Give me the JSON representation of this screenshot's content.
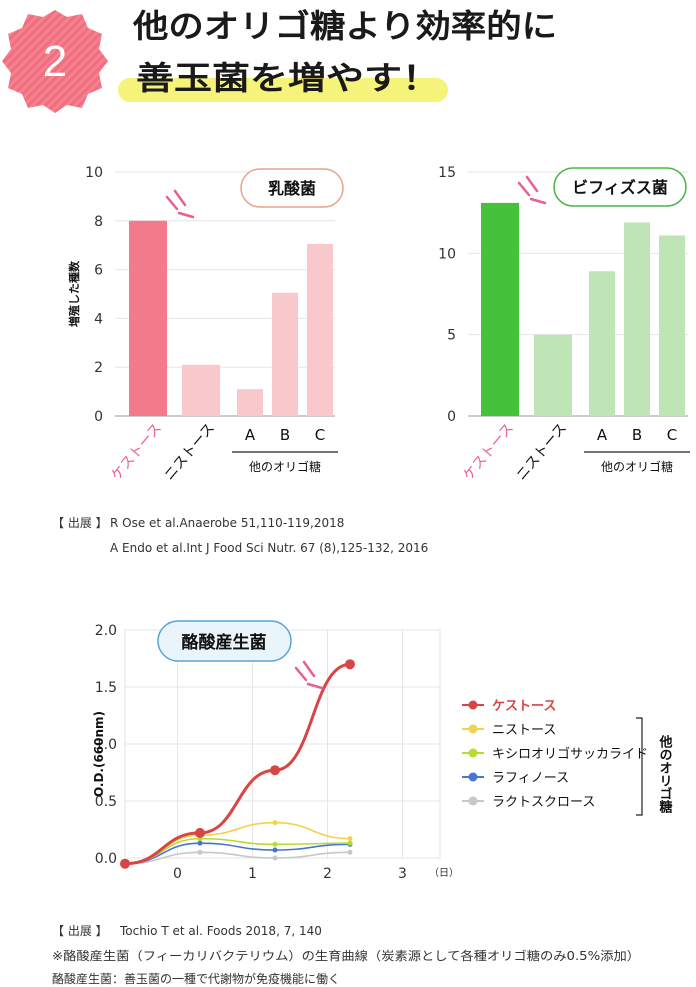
{
  "header": {
    "number": "2",
    "line1": "他のオリゴ糖より効率的に",
    "line2": "善玉菌を増やす！"
  },
  "colors": {
    "badge": "#f26d7d",
    "highlight": "#f6f37a",
    "lacto_main": "#f27a8a",
    "lacto_other": "#f9c8cd",
    "bifido_main": "#46c13a",
    "bifido_other": "#bfe5b6",
    "kestose": "#d94545",
    "nistose": "#f2d24a",
    "xylo": "#b6dc2e",
    "raffinose": "#4a72d8",
    "lactosucrose": "#c8c8c8"
  },
  "chart_data": [
    {
      "type": "bar",
      "badge": "乳酸菌",
      "ylabel": "増殖した種数",
      "ylim": [
        0,
        10
      ],
      "yticks": [
        "0",
        "2",
        "4",
        "6",
        "8",
        "10"
      ],
      "categories": [
        "ケストース",
        "ニストース",
        "A",
        "B",
        "C"
      ],
      "values": [
        8,
        2.1,
        1.1,
        5.05,
        7.05
      ],
      "group_label": "他のオリゴ糖"
    },
    {
      "type": "bar",
      "badge": "ビフィズス菌",
      "ylim": [
        0,
        15
      ],
      "yticks": [
        "0",
        "5",
        "10",
        "15"
      ],
      "categories": [
        "ケストース",
        "ニストース",
        "A",
        "B",
        "C"
      ],
      "values": [
        13.1,
        5,
        8.9,
        11.9,
        11.1
      ],
      "group_label": "他のオリゴ糖"
    },
    {
      "type": "line",
      "badge": "酪酸産生菌",
      "ylabel": "O.D.(660nm)",
      "xunit": "（日）",
      "xlim": [
        -0.7,
        3.5
      ],
      "ylim": [
        0,
        2.0
      ],
      "xticks": [
        "0",
        "1",
        "2",
        "3"
      ],
      "yticks": [
        "0.0",
        "0.5",
        "1.0",
        "1.5",
        "2.0"
      ],
      "group_label": "他のオリゴ糖",
      "series": [
        {
          "name": "ケストース",
          "x": [
            -0.7,
            0.3,
            1.3,
            2.3
          ],
          "y": [
            -0.05,
            0.22,
            0.77,
            1.7
          ]
        },
        {
          "name": "ニストース",
          "x": [
            -0.7,
            0.3,
            1.3,
            2.3
          ],
          "y": [
            -0.05,
            0.2,
            0.31,
            0.17
          ]
        },
        {
          "name": "キシロオリゴサッカライド",
          "x": [
            -0.7,
            0.3,
            1.3,
            2.3
          ],
          "y": [
            -0.05,
            0.17,
            0.12,
            0.13
          ]
        },
        {
          "name": "ラフィノース",
          "x": [
            -0.7,
            0.3,
            1.3,
            2.3
          ],
          "y": [
            -0.05,
            0.13,
            0.07,
            0.12
          ]
        },
        {
          "name": "ラクトスクロース",
          "x": [
            -0.7,
            0.3,
            1.3,
            2.3
          ],
          "y": [
            -0.05,
            0.05,
            0.0,
            0.05
          ]
        }
      ]
    }
  ],
  "sources": {
    "source1_label": "【 出展 】",
    "source1_line1": "R Ose et al.Anaerobe 51,110-119,2018",
    "source1_line2": "A Endo et al.Int J Food Sci Nutr. 67 (8),125-132, 2016",
    "source2_label": "【 出展 】",
    "source2_line1": "Tochio T et al. Foods 2018, 7, 140",
    "note1": "※酪酸産生菌（フィーカリバクテリウム）の生育曲線（炭素源として各種オリゴ糖のみ0.5%添加）",
    "note2": "酪酸産生菌：善玉菌の一種で代謝物が免疫機能に働く"
  }
}
